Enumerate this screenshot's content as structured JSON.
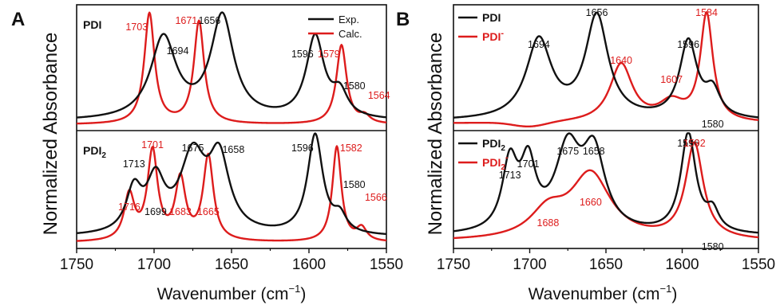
{
  "figure": {
    "panel_a_label": "A",
    "panel_b_label": "B",
    "ylabel": "Normalized Absorbance",
    "xlabel_a": "Wavenumber (cm",
    "xlabel_b": "Wavenumber (cm",
    "xlabel_exp": "−1",
    "xlabel_close": ")",
    "colors": {
      "black": "#111111",
      "red": "#dd1c1c"
    }
  },
  "chart_data": [
    {
      "panel": "A",
      "type": "line",
      "xlabel": "Wavenumber (cm−1)",
      "ylabel": "Normalized Absorbance",
      "xlim": [
        1750,
        1550
      ],
      "xticks": [
        "1750",
        "1700",
        "1650",
        "1600",
        "1550"
      ],
      "legend": {
        "placement": "top-right",
        "entries": [
          "Exp.",
          "Calc."
        ]
      },
      "subplots": [
        {
          "label": "PDI",
          "label_sub": "",
          "series": [
            {
              "name": "Exp.",
              "color": "black",
              "peaks": [
                [
                  1694,
                  0.7,
                  10
                ],
                [
                  1656,
                  0.88,
                  9
                ],
                [
                  1596,
                  0.7,
                  7
                ],
                [
                  1580,
                  0.2,
                  6
                ]
              ],
              "baseline": 0.04
            },
            {
              "name": "Calc.",
              "color": "red",
              "peaks": [
                [
                  1703,
                  0.95,
                  4
                ],
                [
                  1671,
                  0.88,
                  4
                ],
                [
                  1579,
                  0.68,
                  4
                ],
                [
                  1564,
                  0.06,
                  4
                ]
              ],
              "baseline": 0.01
            }
          ],
          "annotations": [
            {
              "text": "1703",
              "color": "red",
              "x": 1703
            },
            {
              "text": "1694",
              "color": "black",
              "x": 1694
            },
            {
              "text": "1671",
              "color": "red",
              "x": 1671
            },
            {
              "text": "1656",
              "color": "black",
              "x": 1656
            },
            {
              "text": "1596",
              "color": "black",
              "x": 1596
            },
            {
              "text": "1579",
              "color": "red",
              "x": 1579
            },
            {
              "text": "1580",
              "color": "black",
              "x": 1580
            },
            {
              "text": "1564",
              "color": "red",
              "x": 1564
            }
          ]
        },
        {
          "label": "PDI",
          "label_sub": "2",
          "series": [
            {
              "name": "Exp.",
              "color": "black",
              "peaks": [
                [
                  1713,
                  0.38,
                  6
                ],
                [
                  1699,
                  0.46,
                  7
                ],
                [
                  1675,
                  0.7,
                  10
                ],
                [
                  1658,
                  0.66,
                  8
                ],
                [
                  1596,
                  0.92,
                  6
                ],
                [
                  1580,
                  0.15,
                  5
                ]
              ],
              "baseline": 0.06
            },
            {
              "name": "Calc.",
              "color": "red",
              "peaks": [
                [
                  1716,
                  0.42,
                  4
                ],
                [
                  1701,
                  0.82,
                  4
                ],
                [
                  1683,
                  0.56,
                  4
                ],
                [
                  1665,
                  0.78,
                  4
                ],
                [
                  1582,
                  0.88,
                  3.5
                ],
                [
                  1566,
                  0.12,
                  4
                ]
              ],
              "baseline": 0.01
            }
          ],
          "annotations": [
            {
              "text": "1713",
              "color": "black",
              "x": 1713
            },
            {
              "text": "1701",
              "color": "red",
              "x": 1701
            },
            {
              "text": "1675",
              "color": "black",
              "x": 1675
            },
            {
              "text": "1658",
              "color": "black",
              "x": 1658
            },
            {
              "text": "1716",
              "color": "red",
              "x": 1716
            },
            {
              "text": "1699",
              "color": "black",
              "x": 1699
            },
            {
              "text": "1683",
              "color": "red",
              "x": 1683
            },
            {
              "text": "1665",
              "color": "red",
              "x": 1665
            },
            {
              "text": "1596",
              "color": "black",
              "x": 1596
            },
            {
              "text": "1582",
              "color": "red",
              "x": 1582
            },
            {
              "text": "1580",
              "color": "black",
              "x": 1580
            },
            {
              "text": "1566",
              "color": "red",
              "x": 1566
            }
          ]
        }
      ]
    },
    {
      "panel": "B",
      "type": "line",
      "xlabel": "Wavenumber (cm−1)",
      "ylabel": "Normalized Absorbance",
      "xlim": [
        1750,
        1550
      ],
      "xticks": [
        "1750",
        "1700",
        "1650",
        "1600",
        "1550"
      ],
      "subplots": [
        {
          "legend": [
            {
              "text": "PDI",
              "sub": "",
              "sup": "",
              "color": "black"
            },
            {
              "text": "PDI",
              "sub": "",
              "sup": "-",
              "color": "red"
            }
          ],
          "series": [
            {
              "name": "PDI",
              "color": "black",
              "peaks": [
                [
                  1694,
                  0.68,
                  10
                ],
                [
                  1656,
                  0.88,
                  9
                ],
                [
                  1596,
                  0.66,
                  7
                ],
                [
                  1580,
                  0.22,
                  6
                ]
              ],
              "baseline": 0.04
            },
            {
              "name": "PDI-",
              "color": "red",
              "peaks": [
                [
                  1640,
                  0.5,
                  9
                ],
                [
                  1607,
                  0.16,
                  10
                ],
                [
                  1584,
                  0.92,
                  5
                ]
              ],
              "baseline": 0.02,
              "dip": [
                1700,
                -0.04,
                15
              ]
            }
          ],
          "annotations": [
            {
              "text": "1694",
              "color": "black",
              "x": 1694
            },
            {
              "text": "1656",
              "color": "black",
              "x": 1656
            },
            {
              "text": "1640",
              "color": "red",
              "x": 1640
            },
            {
              "text": "1607",
              "color": "red",
              "x": 1607
            },
            {
              "text": "1596",
              "color": "black",
              "x": 1596
            },
            {
              "text": "1584",
              "color": "red",
              "x": 1584
            },
            {
              "text": "1580",
              "color": "black",
              "x": 1580
            }
          ]
        },
        {
          "legend": [
            {
              "text": "PDI",
              "sub": "2",
              "sup": "",
              "color": "black"
            },
            {
              "text": "PDI",
              "sub": "2",
              "sup": "-",
              "color": "red"
            }
          ],
          "series": [
            {
              "name": "PDI2",
              "color": "black",
              "peaks": [
                [
                  1713,
                  0.62,
                  6
                ],
                [
                  1701,
                  0.58,
                  6
                ],
                [
                  1675,
                  0.74,
                  10
                ],
                [
                  1658,
                  0.7,
                  9
                ],
                [
                  1596,
                  0.92,
                  6
                ],
                [
                  1580,
                  0.18,
                  5
                ]
              ],
              "baseline": 0.07
            },
            {
              "name": "PDI2-",
              "color": "red",
              "peaks": [
                [
                  1688,
                  0.24,
                  14
                ],
                [
                  1660,
                  0.6,
                  16
                ],
                [
                  1592,
                  0.88,
                  7
                ]
              ],
              "baseline": 0.02
            }
          ],
          "annotations": [
            {
              "text": "1713",
              "color": "black",
              "x": 1713
            },
            {
              "text": "1701",
              "color": "black",
              "x": 1701
            },
            {
              "text": "1675",
              "color": "black",
              "x": 1675
            },
            {
              "text": "1658",
              "color": "black",
              "x": 1658
            },
            {
              "text": "1660",
              "color": "red",
              "x": 1660
            },
            {
              "text": "1688",
              "color": "red",
              "x": 1688
            },
            {
              "text": "1596",
              "color": "black",
              "x": 1596
            },
            {
              "text": "1592",
              "color": "red",
              "x": 1592
            },
            {
              "text": "1580",
              "color": "black",
              "x": 1580
            }
          ]
        }
      ]
    }
  ]
}
